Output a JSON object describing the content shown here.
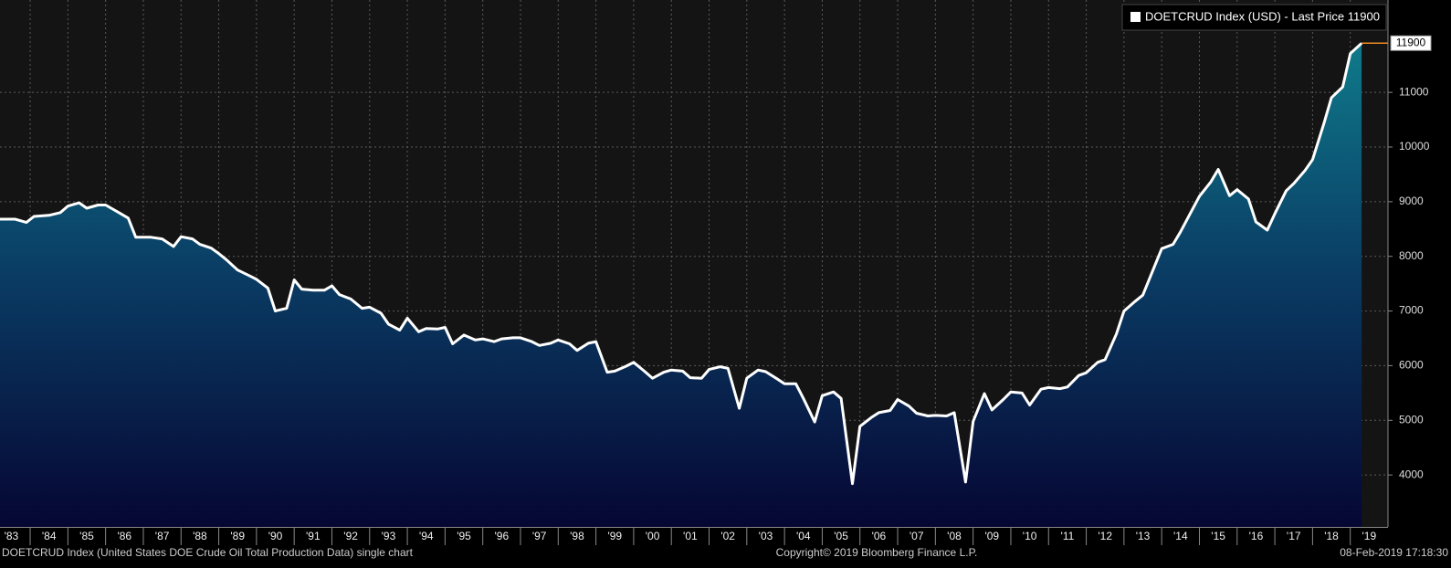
{
  "chart_data": {
    "type": "area",
    "x": [
      1983.2,
      1983.6,
      1983.9,
      1984.1,
      1984.5,
      1984.8,
      1985.0,
      1985.3,
      1985.5,
      1985.8,
      1986.0,
      1986.3,
      1986.6,
      1986.8,
      1987.2,
      1987.5,
      1987.8,
      1988.0,
      1988.3,
      1988.5,
      1988.8,
      1989.0,
      1989.2,
      1989.5,
      1989.8,
      1990.0,
      1990.3,
      1990.5,
      1990.8,
      1991.0,
      1991.2,
      1991.5,
      1991.8,
      1992.0,
      1992.2,
      1992.5,
      1992.8,
      1993.0,
      1993.3,
      1993.5,
      1993.8,
      1994.0,
      1994.3,
      1994.5,
      1994.8,
      1995.0,
      1995.2,
      1995.5,
      1995.8,
      1996.0,
      1996.3,
      1996.5,
      1996.8,
      1997.0,
      1997.3,
      1997.5,
      1997.8,
      1998.0,
      1998.3,
      1998.5,
      1998.8,
      1999.0,
      1999.3,
      1999.5,
      1999.8,
      2000.0,
      2000.3,
      2000.5,
      2000.8,
      2001.0,
      2001.3,
      2001.5,
      2001.8,
      2002.0,
      2002.3,
      2002.5,
      2002.8,
      2003.0,
      2003.3,
      2003.5,
      2003.8,
      2004.0,
      2004.3,
      2004.5,
      2004.8,
      2005.0,
      2005.3,
      2005.5,
      2005.8,
      2006.0,
      2006.3,
      2006.5,
      2006.8,
      2007.0,
      2007.3,
      2007.5,
      2007.8,
      2008.0,
      2008.3,
      2008.5,
      2008.8,
      2009.0,
      2009.3,
      2009.5,
      2009.8,
      2010.0,
      2010.3,
      2010.5,
      2010.8,
      2011.0,
      2011.3,
      2011.5,
      2011.8,
      2012.0,
      2012.3,
      2012.5,
      2012.8,
      2013.0,
      2013.3,
      2013.5,
      2013.8,
      2014.0,
      2014.3,
      2014.5,
      2014.8,
      2015.0,
      2015.3,
      2015.5,
      2015.8,
      2016.0,
      2016.3,
      2016.5,
      2016.8,
      2017.0,
      2017.3,
      2017.5,
      2017.8,
      2018.0,
      2018.3,
      2018.5,
      2018.8,
      2019.0,
      2019.3
    ],
    "series": [
      {
        "name": "DOETCRUD Index (USD) - Last Price 11900",
        "color": "#ffffff",
        "values": [
          8680,
          8680,
          8620,
          8730,
          8750,
          8800,
          8920,
          8980,
          8880,
          8940,
          8940,
          8820,
          8700,
          8350,
          8350,
          8320,
          8180,
          8360,
          8320,
          8220,
          8150,
          8050,
          7940,
          7750,
          7650,
          7580,
          7420,
          7000,
          7050,
          7570,
          7400,
          7380,
          7380,
          7460,
          7300,
          7220,
          7050,
          7070,
          6960,
          6760,
          6650,
          6870,
          6620,
          6680,
          6670,
          6700,
          6400,
          6560,
          6470,
          6490,
          6440,
          6490,
          6510,
          6510,
          6440,
          6370,
          6410,
          6470,
          6400,
          6280,
          6410,
          6440,
          5880,
          5900,
          5990,
          6060,
          5890,
          5770,
          5880,
          5920,
          5900,
          5780,
          5770,
          5930,
          5980,
          5950,
          5220,
          5770,
          5920,
          5890,
          5760,
          5670,
          5670,
          5400,
          4970,
          5450,
          5520,
          5400,
          3840,
          4890,
          5050,
          5140,
          5180,
          5380,
          5260,
          5130,
          5080,
          5090,
          5080,
          5140,
          3870,
          4980,
          5490,
          5190,
          5380,
          5520,
          5500,
          5280,
          5570,
          5600,
          5580,
          5610,
          5820,
          5870,
          6060,
          6110,
          6580,
          7000,
          7180,
          7290,
          7800,
          8140,
          8220,
          8450,
          8840,
          9100,
          9360,
          9590,
          9110,
          9220,
          9050,
          8630,
          8480,
          8780,
          9200,
          9330,
          9570,
          9770,
          10430,
          10900,
          11100,
          11710,
          11900
        ]
      }
    ],
    "xlim": [
      1983.2,
      2020.0
    ],
    "xticks": [
      {
        "value": 1983.5,
        "label": "'83"
      },
      {
        "value": 1984.5,
        "label": "'84"
      },
      {
        "value": 1985.5,
        "label": "'85"
      },
      {
        "value": 1986.5,
        "label": "'86"
      },
      {
        "value": 1987.5,
        "label": "'87"
      },
      {
        "value": 1988.5,
        "label": "'88"
      },
      {
        "value": 1989.5,
        "label": "'89"
      },
      {
        "value": 1990.5,
        "label": "'90"
      },
      {
        "value": 1991.5,
        "label": "'91"
      },
      {
        "value": 1992.5,
        "label": "'92"
      },
      {
        "value": 1993.5,
        "label": "'93"
      },
      {
        "value": 1994.5,
        "label": "'94"
      },
      {
        "value": 1995.5,
        "label": "'95"
      },
      {
        "value": 1996.5,
        "label": "'96"
      },
      {
        "value": 1997.5,
        "label": "'97"
      },
      {
        "value": 1998.5,
        "label": "'98"
      },
      {
        "value": 1999.5,
        "label": "'99"
      },
      {
        "value": 2000.5,
        "label": "'00"
      },
      {
        "value": 2001.5,
        "label": "'01"
      },
      {
        "value": 2002.5,
        "label": "'02"
      },
      {
        "value": 2003.5,
        "label": "'03"
      },
      {
        "value": 2004.5,
        "label": "'04"
      },
      {
        "value": 2005.5,
        "label": "'05"
      },
      {
        "value": 2006.5,
        "label": "'06"
      },
      {
        "value": 2007.5,
        "label": "'07"
      },
      {
        "value": 2008.5,
        "label": "'08"
      },
      {
        "value": 2009.5,
        "label": "'09"
      },
      {
        "value": 2010.5,
        "label": "'10"
      },
      {
        "value": 2011.5,
        "label": "'11"
      },
      {
        "value": 2012.5,
        "label": "'12"
      },
      {
        "value": 2013.5,
        "label": "'13"
      },
      {
        "value": 2014.5,
        "label": "'14"
      },
      {
        "value": 2015.5,
        "label": "'15"
      },
      {
        "value": 2016.5,
        "label": "'16"
      },
      {
        "value": 2017.5,
        "label": "'17"
      },
      {
        "value": 2018.5,
        "label": "'18"
      },
      {
        "value": 2019.5,
        "label": "'19"
      }
    ],
    "ylim": [
      3050,
      12690
    ],
    "yticks": [
      4000,
      5000,
      6000,
      7000,
      8000,
      9000,
      10000,
      11000
    ],
    "grid": true,
    "legend": "top-right",
    "last_price_color": "#f08c1e"
  },
  "footer": {
    "description": "DOETCRUD Index (United States DOE Crude Oil Total Production Data) single chart",
    "copyright": "Copyright© 2019 Bloomberg Finance L.P.",
    "timestamp": "08-Feb-2019 17:18:30"
  }
}
